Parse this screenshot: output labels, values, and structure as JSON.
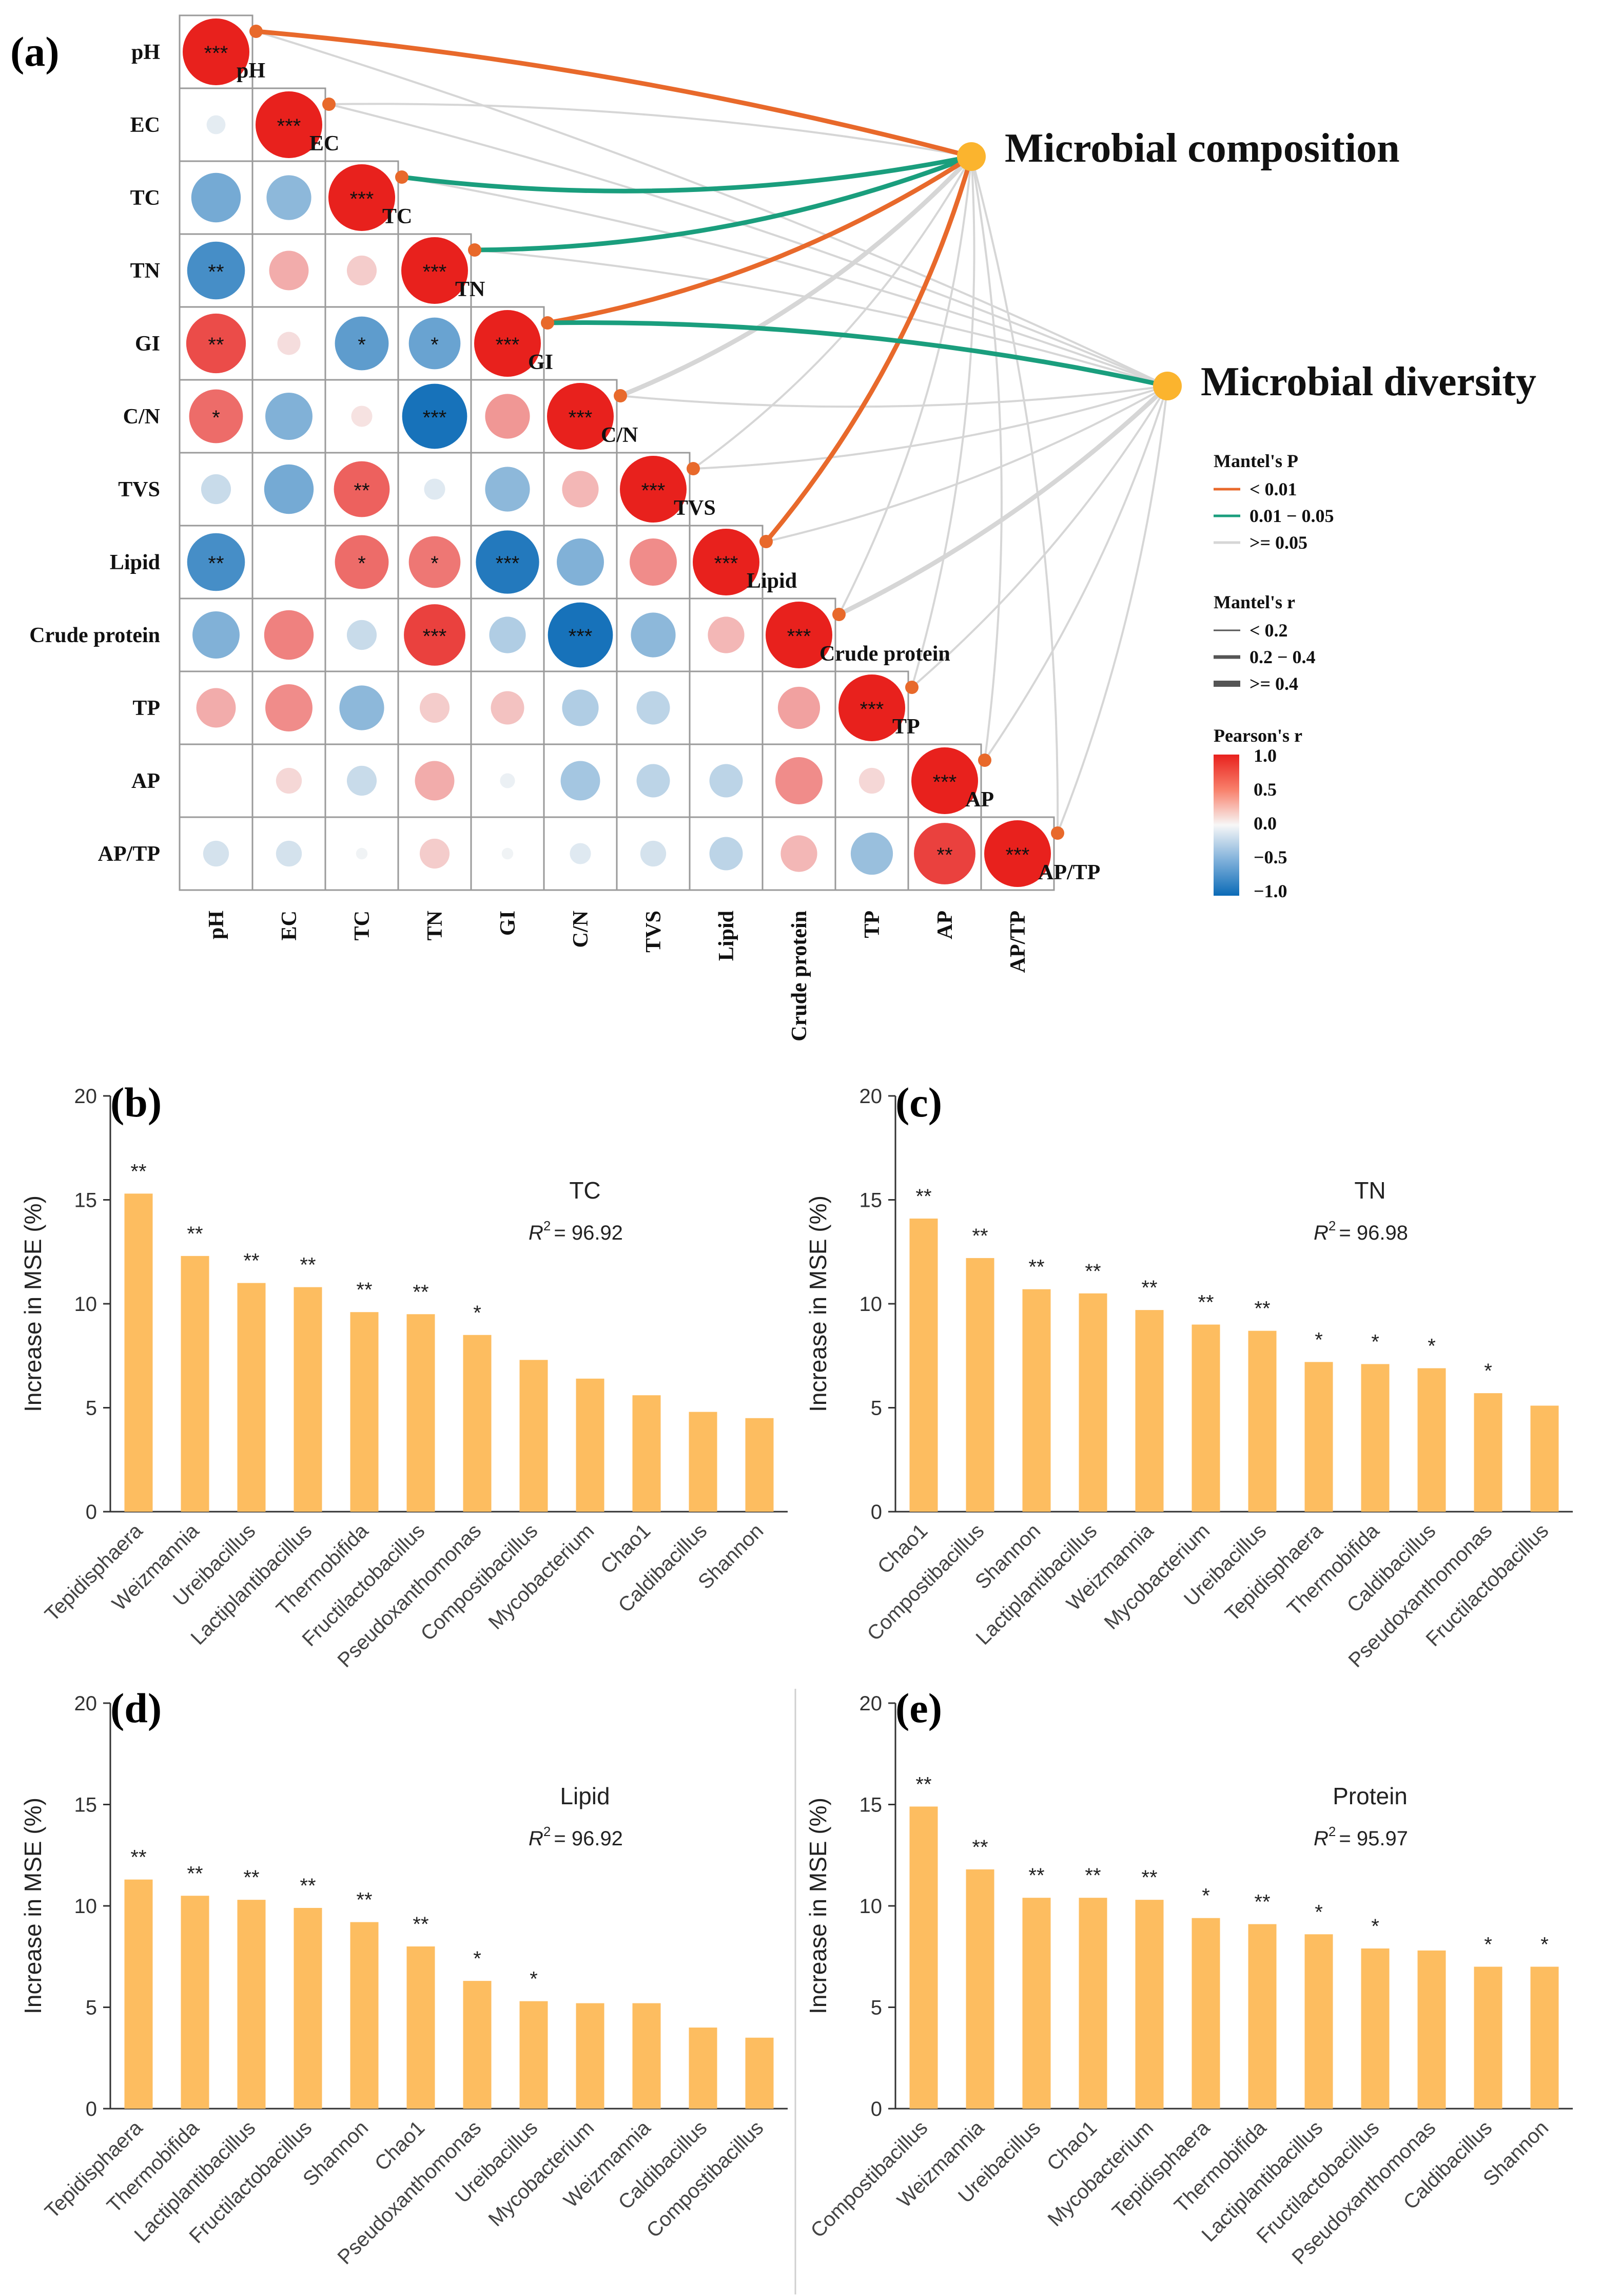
{
  "panel_a": {
    "label": "(a)",
    "variables": [
      "pH",
      "EC",
      "TC",
      "TN",
      "GI",
      "C/N",
      "TVS",
      "Lipid",
      "Crude protein",
      "TP",
      "AP",
      "AP/TP"
    ],
    "cells": [
      [
        1.0
      ],
      [
        -0.08,
        1.0
      ],
      [
        -0.55,
        -0.45,
        1.0
      ],
      [
        -0.75,
        0.35,
        0.2,
        1.0
      ],
      [
        0.8,
        0.12,
        -0.65,
        -0.6,
        1.0
      ],
      [
        0.65,
        -0.5,
        0.1,
        -0.95,
        0.45,
        1.0
      ],
      [
        -0.2,
        -0.55,
        0.7,
        -0.1,
        -0.45,
        0.3,
        1.0
      ],
      [
        -0.75,
        0.0,
        0.65,
        0.6,
        -0.9,
        -0.5,
        0.5,
        1.0
      ],
      [
        -0.5,
        0.55,
        -0.2,
        0.85,
        -0.3,
        -0.95,
        -0.45,
        0.3,
        1.0
      ],
      [
        0.35,
        0.5,
        -0.45,
        0.2,
        0.25,
        -0.3,
        -0.25,
        0.0,
        0.4,
        1.0
      ],
      [
        0.0,
        0.15,
        -0.2,
        0.35,
        -0.05,
        -0.35,
        -0.25,
        -0.25,
        0.5,
        0.15,
        1.0
      ],
      [
        -0.15,
        -0.15,
        -0.03,
        0.2,
        -0.03,
        -0.1,
        -0.15,
        -0.25,
        0.3,
        -0.4,
        0.85,
        1.0
      ]
    ],
    "stars": [
      [
        "***"
      ],
      [
        "",
        "***"
      ],
      [
        "",
        "",
        "***"
      ],
      [
        "**",
        "",
        "",
        "***"
      ],
      [
        "**",
        "",
        "*",
        "*",
        "***"
      ],
      [
        "*",
        "",
        "",
        "***",
        "",
        "***"
      ],
      [
        "",
        "",
        "**",
        "",
        "",
        "",
        "***"
      ],
      [
        "**",
        "",
        "*",
        "*",
        "***",
        "",
        "",
        "***"
      ],
      [
        "",
        "",
        "",
        "***",
        "",
        "***",
        "",
        "",
        "***"
      ],
      [
        "",
        "",
        "",
        "",
        "",
        "",
        "",
        "",
        "",
        "***"
      ],
      [
        "",
        "",
        "",
        "",
        "",
        "",
        "",
        "",
        "",
        "",
        "***"
      ],
      [
        "",
        "",
        "",
        "",
        "",
        "",
        "",
        "",
        "",
        "",
        "**",
        "***"
      ]
    ],
    "nodes": {
      "composition": "Microbial composition",
      "diversity": "Microbial diversity"
    },
    "edges_composition": [
      {
        "var": 0,
        "p": "lt0.01",
        "r": "mid"
      },
      {
        "var": 1,
        "p": "ge0.05",
        "r": "lt"
      },
      {
        "var": 2,
        "p": "0.01-0.05",
        "r": "mid"
      },
      {
        "var": 3,
        "p": "0.01-0.05",
        "r": "mid"
      },
      {
        "var": 4,
        "p": "lt0.01",
        "r": "mid"
      },
      {
        "var": 5,
        "p": "ge0.05",
        "r": "mid"
      },
      {
        "var": 6,
        "p": "ge0.05",
        "r": "lt"
      },
      {
        "var": 7,
        "p": "lt0.01",
        "r": "mid"
      },
      {
        "var": 8,
        "p": "ge0.05",
        "r": "lt"
      },
      {
        "var": 9,
        "p": "ge0.05",
        "r": "lt"
      },
      {
        "var": 10,
        "p": "ge0.05",
        "r": "lt"
      },
      {
        "var": 11,
        "p": "ge0.05",
        "r": "lt"
      }
    ],
    "edges_diversity": [
      {
        "var": 0,
        "p": "ge0.05",
        "r": "lt"
      },
      {
        "var": 1,
        "p": "ge0.05",
        "r": "lt"
      },
      {
        "var": 2,
        "p": "ge0.05",
        "r": "lt"
      },
      {
        "var": 3,
        "p": "ge0.05",
        "r": "lt"
      },
      {
        "var": 4,
        "p": "0.01-0.05",
        "r": "mid"
      },
      {
        "var": 5,
        "p": "ge0.05",
        "r": "lt"
      },
      {
        "var": 6,
        "p": "ge0.05",
        "r": "lt"
      },
      {
        "var": 7,
        "p": "ge0.05",
        "r": "lt"
      },
      {
        "var": 8,
        "p": "ge0.05",
        "r": "mid"
      },
      {
        "var": 9,
        "p": "ge0.05",
        "r": "lt"
      },
      {
        "var": 10,
        "p": "ge0.05",
        "r": "lt"
      },
      {
        "var": 11,
        "p": "ge0.05",
        "r": "lt"
      }
    ],
    "legend": {
      "p_title": "Mantel's P",
      "p_items": [
        "< 0.01",
        "0.01 − 0.05",
        ">= 0.05"
      ],
      "r_title": "Mantel's r",
      "r_items": [
        "< 0.2",
        "0.2 − 0.4",
        ">= 0.4"
      ],
      "pearson_title": "Pearson's r",
      "pearson_ticks": [
        "1.0",
        "0.5",
        "0.0",
        "−0.5",
        "−1.0"
      ]
    }
  },
  "colors": {
    "orange_edge": "#e8692b",
    "green_edge": "#1a9e7d",
    "gray_edge": "#d6d6d6",
    "node": "#fbb42e",
    "bar": "#fdbd60",
    "red": "#ef3b2c",
    "blue": "#1f78b4"
  },
  "chart_data": [
    {
      "type": "bar",
      "panel": "(b)",
      "title": "TC",
      "r2_label": "R",
      "r2_value": "= 96.92",
      "ylabel": "Increase in MSE (%)",
      "ylim": [
        0,
        20
      ],
      "yticks": [
        "0",
        "5",
        "10",
        "15",
        "20"
      ],
      "categories": [
        "Tepidisphaera",
        "Weizmannia",
        "Ureibacillus",
        "Lactiplantibacillus",
        "Thermobifida",
        "Fructilactobacillus",
        "Pseudoxanthomonas",
        "Compostibacillus",
        "Mycobacterium",
        "Chao1",
        "Caldibacillus",
        "Shannon"
      ],
      "values": [
        15.3,
        12.3,
        11.0,
        10.8,
        9.6,
        9.5,
        8.5,
        7.3,
        6.4,
        5.6,
        4.8,
        4.5
      ],
      "stars": [
        "**",
        "**",
        "**",
        "**",
        "**",
        "**",
        "*",
        "",
        "",
        "",
        "",
        ""
      ]
    },
    {
      "type": "bar",
      "panel": "(c)",
      "title": "TN",
      "r2_label": "R",
      "r2_value": "= 96.98",
      "ylabel": "Increase in MSE (%)",
      "ylim": [
        0,
        20
      ],
      "yticks": [
        "0",
        "5",
        "10",
        "15",
        "20"
      ],
      "categories": [
        "Chao1",
        "Compostibacillus",
        "Shannon",
        "Lactiplantibacillus",
        "Weizmannia",
        "Mycobacterium",
        "Ureibacillus",
        "Tepidisphaera",
        "Thermobifida",
        "Caldibacillus",
        "Pseudoxanthomonas",
        "Fructilactobacillus"
      ],
      "values": [
        14.1,
        12.2,
        10.7,
        10.5,
        9.7,
        9.0,
        8.7,
        7.2,
        7.1,
        6.9,
        5.7,
        5.1
      ],
      "stars": [
        "**",
        "**",
        "**",
        "**",
        "**",
        "**",
        "**",
        "*",
        "*",
        "*",
        "*",
        ""
      ]
    },
    {
      "type": "bar",
      "panel": "(d)",
      "title": "Lipid",
      "r2_label": "R",
      "r2_value": "= 96.92",
      "ylabel": "Increase in MSE (%)",
      "ylim": [
        0,
        20
      ],
      "yticks": [
        "0",
        "5",
        "10",
        "15",
        "20"
      ],
      "categories": [
        "Tepidisphaera",
        "Thermobifida",
        "Lactiplantibacillus",
        "Fructilactobacillus",
        "Shannon",
        "Chao1",
        "Pseudoxanthomonas",
        "Ureibacillus",
        "Mycobacterium",
        "Weizmannia",
        "Caldibacillus",
        "Compostibacillus"
      ],
      "values": [
        11.3,
        10.5,
        10.3,
        9.9,
        9.2,
        8.0,
        6.3,
        5.3,
        5.2,
        5.2,
        4.0,
        3.5
      ],
      "stars": [
        "**",
        "**",
        "**",
        "**",
        "**",
        "**",
        "*",
        "*",
        "",
        "",
        "",
        ""
      ]
    },
    {
      "type": "bar",
      "panel": "(e)",
      "title": "Protein",
      "r2_label": "R",
      "r2_value": "= 95.97",
      "ylabel": "Increase in MSE (%)",
      "ylim": [
        0,
        20
      ],
      "yticks": [
        "0",
        "5",
        "10",
        "15",
        "20"
      ],
      "categories": [
        "Compostibacillus",
        "Weizmannia",
        "Ureibacillus",
        "Chao1",
        "Mycobacterium",
        "Tepidisphaera",
        "Thermobifida",
        "Lactiplantibacillus",
        "Fructilactobacillus",
        "Pseudoxanthomonas",
        "Caldibacillus",
        "Shannon"
      ],
      "values": [
        14.9,
        11.8,
        10.4,
        10.4,
        10.3,
        9.4,
        9.1,
        8.6,
        7.9,
        7.8,
        7.0,
        7.0
      ],
      "stars": [
        "**",
        "**",
        "**",
        "**",
        "**",
        "*",
        "**",
        "*",
        "*",
        "",
        "*",
        "*"
      ]
    }
  ]
}
